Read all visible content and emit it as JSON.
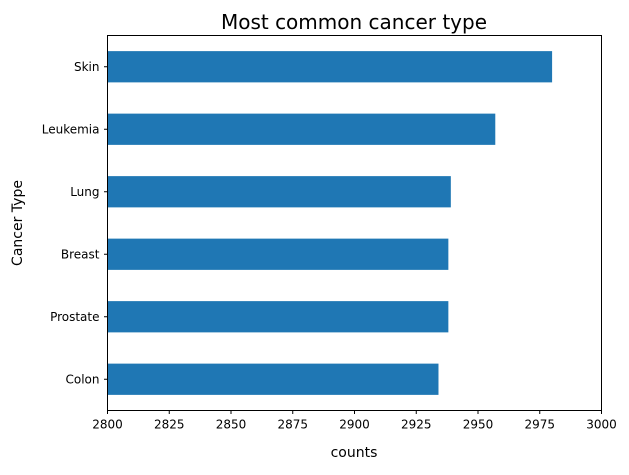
{
  "chart_data": {
    "type": "bar",
    "orientation": "horizontal",
    "title": "Most common cancer type",
    "xlabel": "counts",
    "ylabel": "Cancer Type",
    "categories": [
      "Skin",
      "Leukemia",
      "Lung",
      "Breast",
      "Prostate",
      "Colon"
    ],
    "values": [
      2980,
      2957,
      2939,
      2938,
      2938,
      2934
    ],
    "xlim": [
      2800,
      3000
    ],
    "xticks": [
      "2800",
      "2825",
      "2850",
      "2875",
      "2900",
      "2925",
      "2950",
      "2975",
      "3000"
    ],
    "grid": false,
    "bar_color": "#1f77b4"
  }
}
